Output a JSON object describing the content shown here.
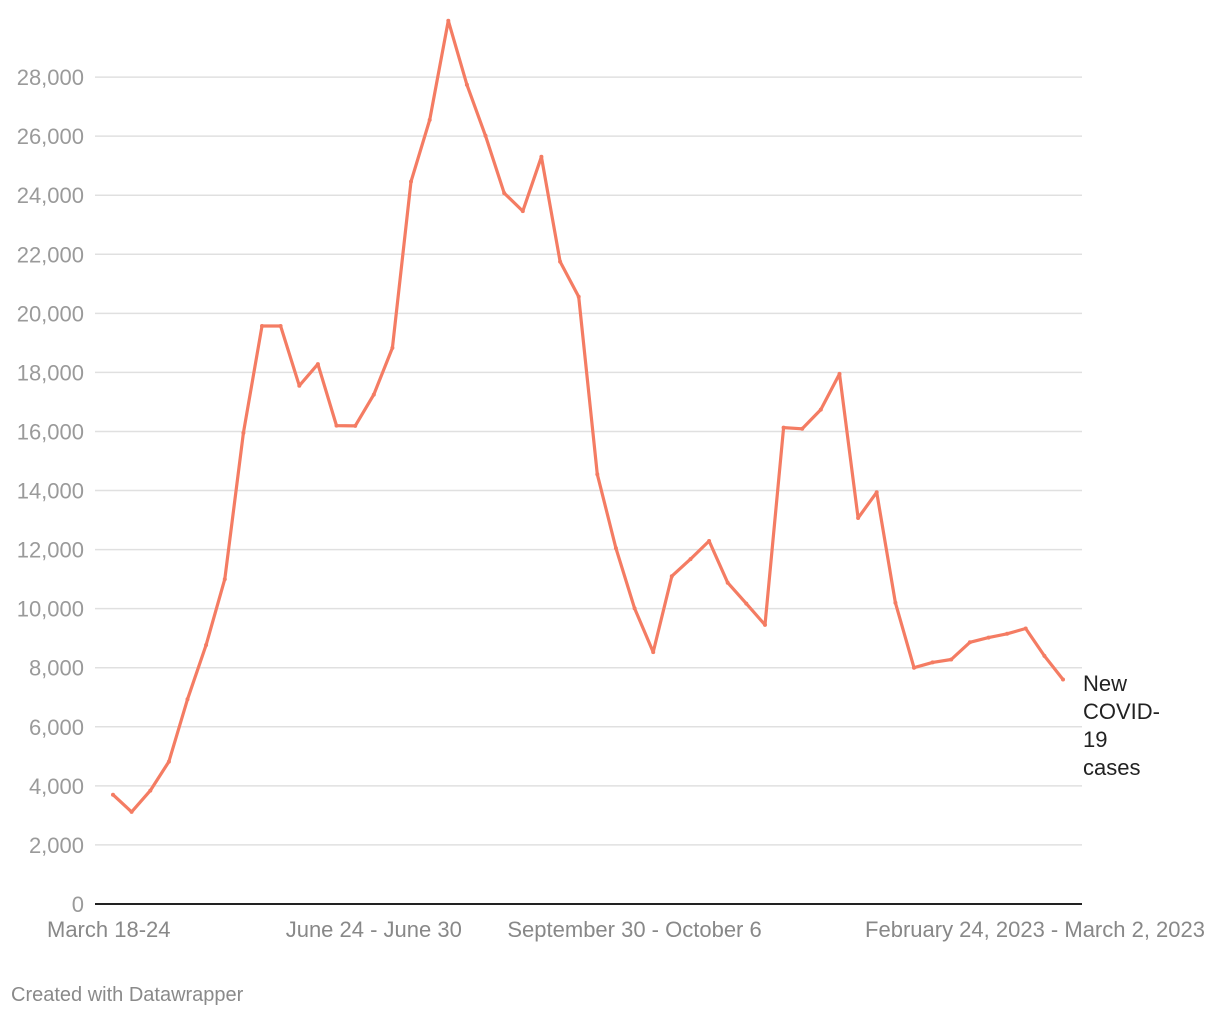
{
  "chart_data": {
    "type": "line",
    "series": [
      {
        "name": "New COVID-19 cases",
        "label_lines": [
          "New",
          "COVID-",
          "19",
          "cases"
        ],
        "color": "#f47c63",
        "values": [
          3700,
          3120,
          3840,
          4820,
          6930,
          8770,
          11000,
          15950,
          19570,
          19570,
          17550,
          18280,
          16200,
          16190,
          17250,
          18830,
          24460,
          26550,
          29910,
          27740,
          26010,
          24070,
          23460,
          25300,
          21750,
          20560,
          14550,
          12050,
          10010,
          8530,
          11100,
          11680,
          12290,
          10880,
          10170,
          9450,
          16130,
          16090,
          16740,
          17950,
          13070,
          13940,
          10200,
          8000,
          8180,
          8280,
          8860,
          9020,
          9150,
          9330,
          8400,
          7600
        ]
      }
    ],
    "x_tick_labels": [
      {
        "label": "March 18-24",
        "index": 0
      },
      {
        "label": "June 24 - June 30",
        "index": 14
      },
      {
        "label": "September 30 - October 6",
        "index": 28
      },
      {
        "label": "February 24, 2023 - March 2, 2023",
        "index": 51
      }
    ],
    "y_ticks": [
      0,
      2000,
      4000,
      6000,
      8000,
      10000,
      12000,
      14000,
      16000,
      18000,
      20000,
      22000,
      24000,
      26000,
      28000
    ],
    "ylim": [
      0,
      30000
    ],
    "title": "",
    "xlabel": "",
    "ylabel": "",
    "grid": "horizontal",
    "legend": "end-label"
  },
  "footer": {
    "credit": "Created with Datawrapper"
  }
}
